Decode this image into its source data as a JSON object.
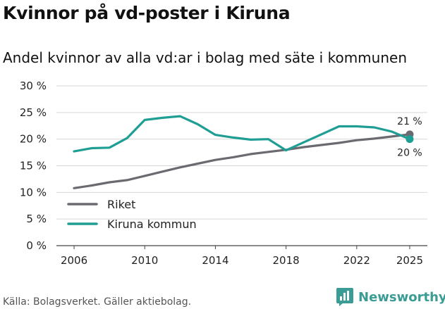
{
  "header": {
    "title": "Kvinnor på vd-poster i Kiruna",
    "subtitle": "Andel kvinnor av alla vd:ar i bolag med säte i kommunen"
  },
  "footer": {
    "source": "Källa: Bolagsverket. Gäller aktiebolag.",
    "logo_text": "Newsworthy",
    "logo_icon": "bar-chart-speech-bubble-icon"
  },
  "chart_data": {
    "type": "line",
    "title": "",
    "xlabel": "",
    "ylabel": "",
    "x": [
      2006,
      2007,
      2008,
      2009,
      2010,
      2011,
      2012,
      2013,
      2014,
      2015,
      2016,
      2017,
      2018,
      2019,
      2020,
      2021,
      2022,
      2023,
      2024,
      2025
    ],
    "xlim": [
      2005,
      2026
    ],
    "ylim": [
      0,
      30
    ],
    "x_ticks": [
      2006,
      2010,
      2014,
      2018,
      2022,
      2025
    ],
    "y_ticks": [
      0,
      5,
      10,
      15,
      20,
      25,
      30
    ],
    "y_tick_labels": [
      "0 %",
      "5 %",
      "10 %",
      "15 %",
      "20 %",
      "25 %",
      "30 %"
    ],
    "grid": "horizontal",
    "legend_position": "bottom-left",
    "series": [
      {
        "name": "Riket",
        "color": "#6b6a70",
        "values": [
          10.8,
          11.3,
          11.9,
          12.3,
          13.1,
          13.9,
          14.7,
          15.4,
          16.1,
          16.6,
          17.2,
          17.6,
          18.0,
          18.5,
          18.9,
          19.3,
          19.8,
          20.1,
          20.5,
          20.9
        ],
        "end_label": "21 %"
      },
      {
        "name": "Kiruna kommun",
        "color": "#1f9e94",
        "values": [
          17.7,
          18.3,
          18.4,
          20.2,
          23.6,
          24.0,
          24.3,
          22.8,
          20.8,
          20.3,
          19.9,
          20.0,
          17.9,
          19.4,
          20.9,
          22.4,
          22.4,
          22.2,
          21.4,
          20.0
        ],
        "end_label": "20 %"
      }
    ]
  }
}
